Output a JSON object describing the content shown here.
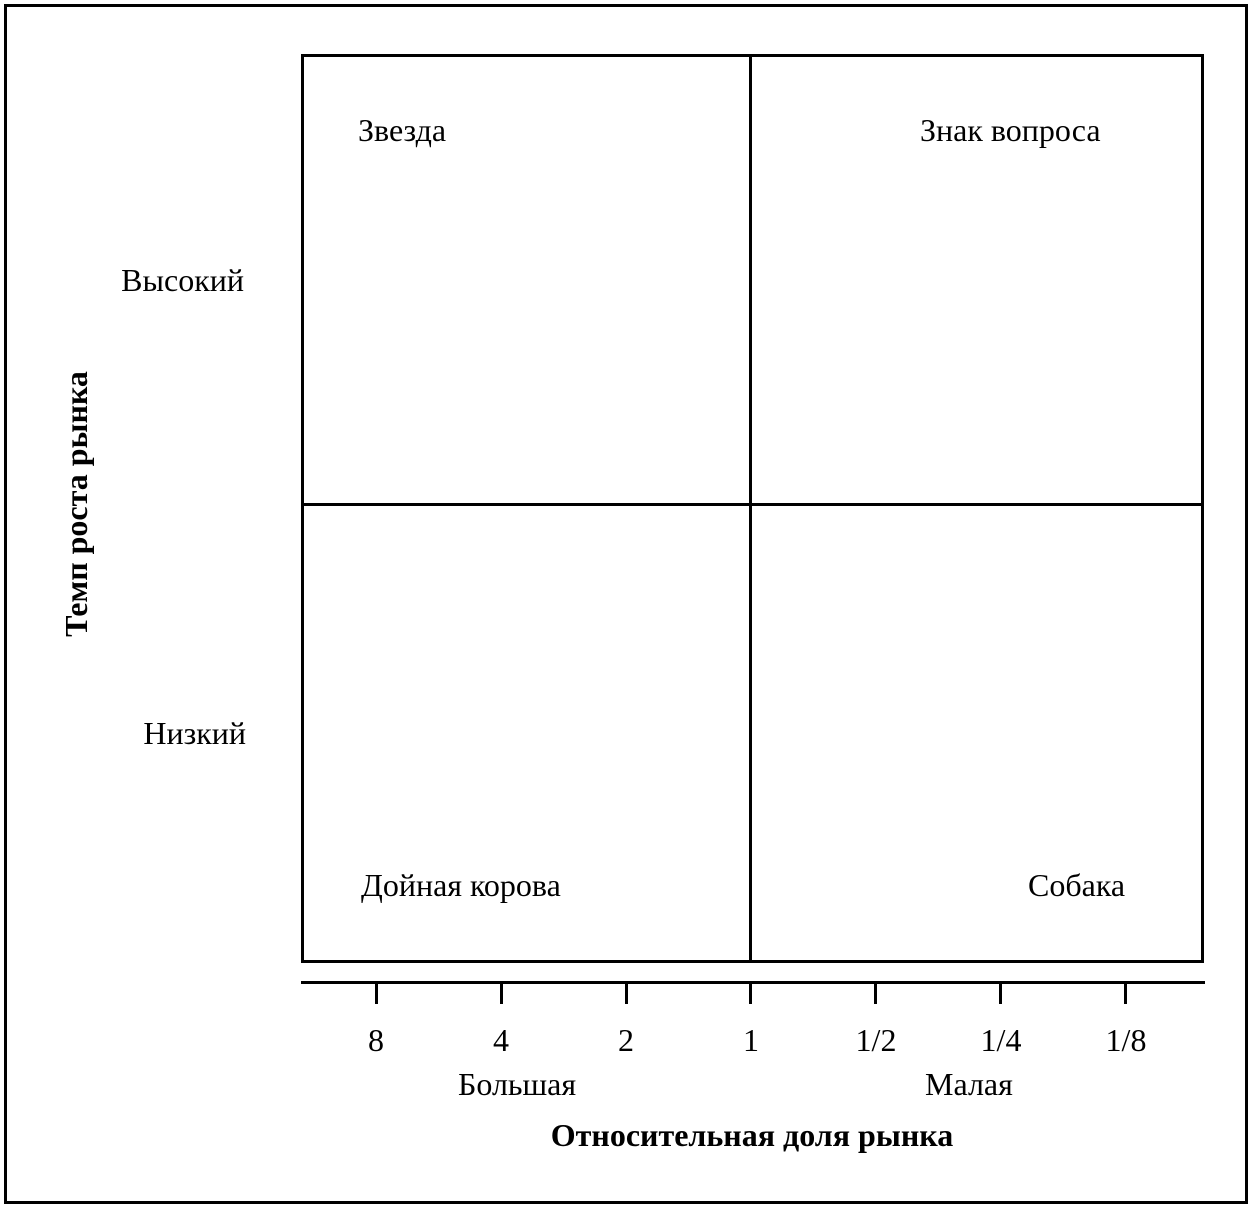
{
  "quadrants": {
    "top_left": "Звезда",
    "top_right": "Знак вопроса",
    "bottom_left": "Дойная корова",
    "bottom_right": "Собака"
  },
  "y_axis": {
    "title": "Темп роста рынка",
    "high_label": "Высокий",
    "low_label": "Низкий"
  },
  "x_axis": {
    "title": "Относительная доля рынка",
    "large_label": "Большая",
    "small_label": "Малая",
    "ticks": [
      "8",
      "4",
      "2",
      "1",
      "1/2",
      "1/4",
      "1/8"
    ]
  }
}
